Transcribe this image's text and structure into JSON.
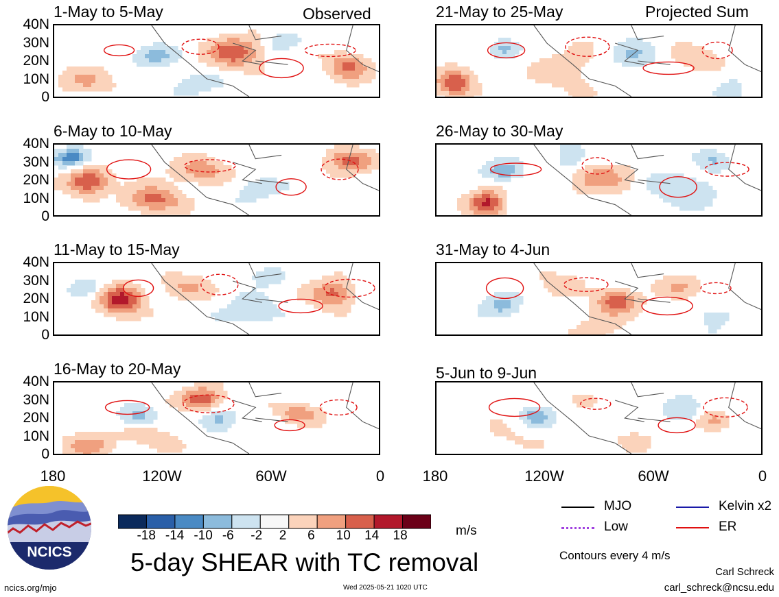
{
  "header": {
    "left_label": "Observed",
    "right_label": "Projected Sum"
  },
  "panels": [
    {
      "title": "1-May to 5-May"
    },
    {
      "title": "21-May to 25-May"
    },
    {
      "title": "6-May to 10-May"
    },
    {
      "title": "26-May to 30-May"
    },
    {
      "title": "11-May to 15-May"
    },
    {
      "title": "31-May to 4-Jun"
    },
    {
      "title": "16-May to 20-May"
    },
    {
      "title": "5-Jun to 9-Jun"
    }
  ],
  "chart_data": {
    "type": "heatmap",
    "title": "5-day SHEAR with TC removal",
    "units": "m/s",
    "x_ticks": [
      "180",
      "120W",
      "60W",
      "0"
    ],
    "y_ticks": [
      "40N",
      "30N",
      "20N",
      "10N",
      "0"
    ],
    "colorbar": {
      "labels": [
        "-18",
        "-14",
        "-10",
        "-6",
        "-2",
        "2",
        "6",
        "10",
        "14",
        "18"
      ],
      "colors": [
        "#0b2a5c",
        "#2a5fa8",
        "#4a8ac4",
        "#8cbbdc",
        "#cde3f0",
        "#f7f7f7",
        "#fbd3bb",
        "#f0a07f",
        "#d8604c",
        "#b2182b",
        "#6b0018"
      ]
    },
    "contour_note": "Contours every 4 m/s",
    "legend": [
      {
        "label": "MJO",
        "color": "#000000",
        "style": "solid"
      },
      {
        "label": "Kelvin x2",
        "color": "#1a1aa8",
        "style": "solid"
      },
      {
        "label": "Low",
        "color": "#a040e0",
        "style": "dotted"
      },
      {
        "label": "ER",
        "color": "#e01010",
        "style": "solid"
      }
    ]
  },
  "footer": {
    "logo_text": "NCICS",
    "url": "ncics.org/mjo",
    "timestamp": "Wed 2025-05-21 1020 UTC",
    "author": "Carl Schreck",
    "email": "carl_schreck@ncsu.edu"
  }
}
